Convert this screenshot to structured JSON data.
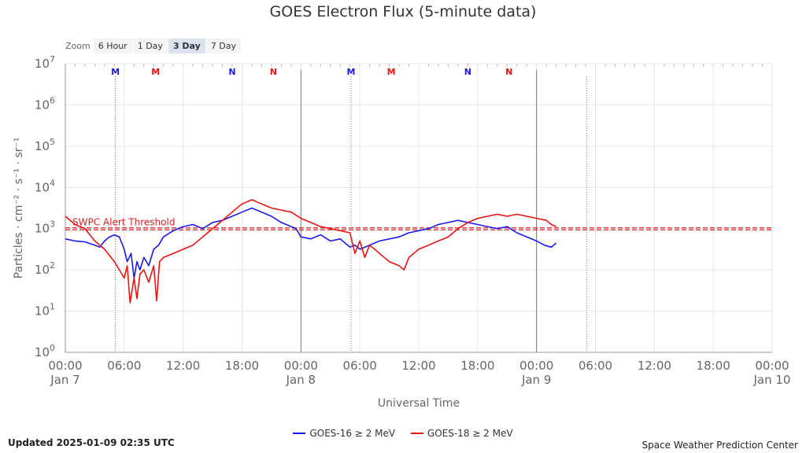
{
  "colors": {
    "goes16": "#1a1af0",
    "goes18": "#ee1111",
    "threshold": "#dd2222",
    "grid": "#e6e6e6",
    "axis": "#999999"
  },
  "zoom": {
    "label": "Zoom",
    "buttons": [
      "6 Hour",
      "1 Day",
      "3 Day",
      "7 Day"
    ],
    "active_index": 2
  },
  "footer": {
    "updated": "Updated 2025-01-09 02:35 UTC",
    "credit": "Space Weather Prediction Center"
  },
  "chart_data": {
    "type": "line",
    "title": "GOES Electron Flux (5-minute data)",
    "xlabel": "Universal Time",
    "ylabel": "Particles · cm⁻² · s⁻¹ · sr⁻¹",
    "x_unit": "hours since 2025-01-07 00:00 UTC",
    "xlim": [
      0,
      72
    ],
    "ylim": [
      0,
      7
    ],
    "y_scale": "log",
    "y_ticks": [
      0,
      1,
      2,
      3,
      4,
      5,
      6,
      7
    ],
    "y_tick_labels": [
      {
        "base": "10",
        "exp": "0"
      },
      {
        "base": "10",
        "exp": "1"
      },
      {
        "base": "10",
        "exp": "2"
      },
      {
        "base": "10",
        "exp": "3"
      },
      {
        "base": "10",
        "exp": "4"
      },
      {
        "base": "10",
        "exp": "5"
      },
      {
        "base": "10",
        "exp": "6"
      },
      {
        "base": "10",
        "exp": "7"
      }
    ],
    "x_ticks": [
      {
        "h": 0,
        "label": "00:00",
        "sub": "Jan 7"
      },
      {
        "h": 6,
        "label": "06:00",
        "sub": ""
      },
      {
        "h": 12,
        "label": "12:00",
        "sub": ""
      },
      {
        "h": 18,
        "label": "18:00",
        "sub": ""
      },
      {
        "h": 24,
        "label": "00:00",
        "sub": "Jan 8"
      },
      {
        "h": 30,
        "label": "06:00",
        "sub": ""
      },
      {
        "h": 36,
        "label": "12:00",
        "sub": ""
      },
      {
        "h": 42,
        "label": "18:00",
        "sub": ""
      },
      {
        "h": 48,
        "label": "00:00",
        "sub": "Jan 9"
      },
      {
        "h": 54,
        "label": "06:00",
        "sub": ""
      },
      {
        "h": 60,
        "label": "12:00",
        "sub": ""
      },
      {
        "h": 66,
        "label": "18:00",
        "sub": ""
      },
      {
        "h": 72,
        "label": "00:00",
        "sub": "Jan 10"
      }
    ],
    "day_lines": [
      24,
      48
    ],
    "noon_lines": [
      5.1,
      29.1,
      53.1
    ],
    "markers": [
      {
        "h": 5.1,
        "text": "M",
        "color": "#1a1af0"
      },
      {
        "h": 9.2,
        "text": "M",
        "color": "#ee1111"
      },
      {
        "h": 17.0,
        "text": "N",
        "color": "#1a1af0"
      },
      {
        "h": 21.2,
        "text": "N",
        "color": "#ee1111"
      },
      {
        "h": 29.1,
        "text": "M",
        "color": "#1a1af0"
      },
      {
        "h": 33.2,
        "text": "M",
        "color": "#ee1111"
      },
      {
        "h": 41.0,
        "text": "N",
        "color": "#1a1af0"
      },
      {
        "h": 45.2,
        "text": "N",
        "color": "#ee1111"
      }
    ],
    "threshold": {
      "value": 3,
      "label": "SWPC Alert Threshold"
    },
    "series": [
      {
        "name": "GOES-16 ≥ 2 MeV",
        "color": "#1a1af0",
        "x": [
          0,
          1,
          2,
          3,
          3.5,
          4,
          4.5,
          5,
          5.5,
          6,
          6.3,
          6.7,
          7,
          7.3,
          7.6,
          8,
          8.5,
          9,
          9.5,
          10,
          11,
          12,
          13,
          14,
          15,
          16,
          17,
          18,
          19,
          20,
          21,
          22,
          23,
          23.5,
          24,
          25,
          26,
          27,
          28,
          29,
          29.5,
          30,
          31,
          32,
          33,
          34,
          35,
          36,
          37,
          38,
          39,
          40,
          41,
          42,
          43,
          44,
          45,
          46,
          47,
          48,
          48.8,
          49.5,
          50
        ],
        "y": [
          2.75,
          2.7,
          2.68,
          2.6,
          2.55,
          2.7,
          2.8,
          2.85,
          2.8,
          2.5,
          2.2,
          2.4,
          1.8,
          2.2,
          2.0,
          2.3,
          2.1,
          2.5,
          2.6,
          2.8,
          2.95,
          3.05,
          3.1,
          3.0,
          3.15,
          3.2,
          3.3,
          3.4,
          3.5,
          3.4,
          3.3,
          3.15,
          3.05,
          3.0,
          2.8,
          2.75,
          2.85,
          2.7,
          2.75,
          2.55,
          2.6,
          2.5,
          2.6,
          2.7,
          2.75,
          2.8,
          2.9,
          2.95,
          3.0,
          3.1,
          3.15,
          3.2,
          3.15,
          3.1,
          3.05,
          3.0,
          3.05,
          2.9,
          2.8,
          2.7,
          2.6,
          2.55,
          2.65
        ]
      },
      {
        "name": "GOES-18 ≥ 2 MeV",
        "color": "#ee1111",
        "x": [
          0,
          1,
          2,
          3,
          4,
          5,
          5.5,
          6,
          6.3,
          6.6,
          7,
          7.3,
          7.6,
          8,
          8.5,
          9,
          9.3,
          9.6,
          10,
          11,
          12,
          13,
          14,
          15,
          16,
          17,
          18,
          19,
          20,
          21,
          22,
          23,
          24,
          25,
          26,
          27,
          28,
          29,
          29.5,
          30,
          30.5,
          31,
          31.5,
          32,
          33,
          34,
          34.5,
          35,
          36,
          37,
          38,
          39,
          40,
          41,
          42,
          43,
          44,
          45,
          46,
          47,
          48,
          49,
          49.5,
          50
        ],
        "y": [
          3.3,
          3.1,
          3.0,
          2.7,
          2.5,
          2.2,
          2.0,
          1.8,
          2.1,
          1.2,
          1.8,
          1.3,
          1.9,
          2.0,
          1.7,
          2.1,
          1.25,
          2.2,
          2.3,
          2.4,
          2.5,
          2.6,
          2.8,
          3.0,
          3.2,
          3.4,
          3.6,
          3.7,
          3.6,
          3.5,
          3.45,
          3.4,
          3.25,
          3.15,
          3.05,
          3.0,
          2.95,
          2.9,
          2.4,
          2.7,
          2.3,
          2.6,
          2.5,
          2.4,
          2.2,
          2.1,
          2.0,
          2.3,
          2.5,
          2.6,
          2.7,
          2.8,
          3.0,
          3.15,
          3.25,
          3.3,
          3.35,
          3.3,
          3.35,
          3.3,
          3.25,
          3.2,
          3.1,
          3.05
        ]
      }
    ]
  }
}
